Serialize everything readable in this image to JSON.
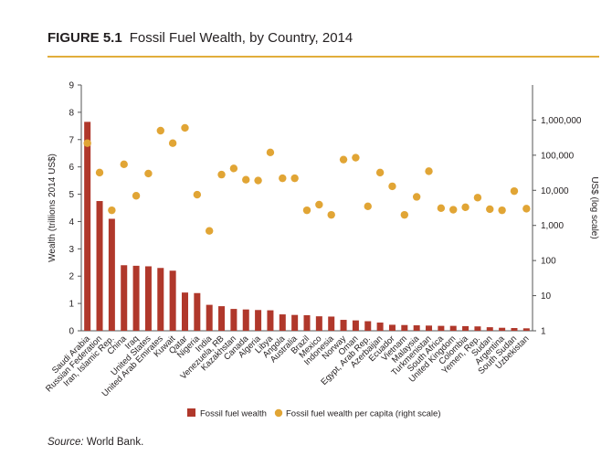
{
  "figure": {
    "label": "FIGURE 5.1",
    "title": "Fossil Fuel Wealth, by Country, 2014"
  },
  "source": {
    "label": "Source:",
    "text": " World Bank."
  },
  "colors": {
    "bar": "#b0382b",
    "dot": "#e1a535",
    "rule": "#e1ad3c",
    "axis": "#555555",
    "text": "#231f20"
  },
  "chart_data": {
    "type": "bar",
    "ylabel": "Wealth (trillions 2014 US$)",
    "ylabel_right": "US$ (log scale)",
    "ylim": [
      0,
      9
    ],
    "yticks": [
      "0",
      "1",
      "2",
      "3",
      "4",
      "5",
      "6",
      "7",
      "8",
      "9"
    ],
    "ylim_right": [
      1,
      10000000
    ],
    "yticks_right": [
      "1",
      "10",
      "100",
      "1,000",
      "10,000",
      "100,000",
      "1,000,000"
    ],
    "yticks_right_values": [
      1,
      10,
      100,
      1000,
      10000,
      100000,
      1000000
    ],
    "grid": false,
    "legend_position": "bottom",
    "categories": [
      "Saudi Arabia",
      "Russian Federation",
      "Iran, Islamic Rep.",
      "China",
      "Iraq",
      "United States",
      "United Arab Emirates",
      "Kuwait",
      "Qatar",
      "Nigeria",
      "India",
      "Venezuela, RB",
      "Kazakhstan",
      "Canada",
      "Algeria",
      "Libya",
      "Angola",
      "Australia",
      "Brazil",
      "Mexico",
      "Indonesia",
      "Norway",
      "Oman",
      "Egypt, Arab Rep.",
      "Azerbaijan",
      "Ecuador",
      "Vietnam",
      "Malaysia",
      "Turkmenistan",
      "South Africa",
      "United Kingdom",
      "Colombia",
      "Yemen, Rep.",
      "Sudan",
      "Argentina",
      "South Sudan",
      "Uzbekistan"
    ],
    "series": [
      {
        "name": "Fossil fuel wealth",
        "kind": "bar",
        "axis": "left",
        "values": [
          7.65,
          4.75,
          4.1,
          2.4,
          2.38,
          2.36,
          2.3,
          2.2,
          1.4,
          1.38,
          0.95,
          0.9,
          0.8,
          0.78,
          0.76,
          0.75,
          0.6,
          0.58,
          0.57,
          0.53,
          0.52,
          0.4,
          0.38,
          0.35,
          0.3,
          0.22,
          0.21,
          0.2,
          0.19,
          0.18,
          0.18,
          0.17,
          0.16,
          0.13,
          0.11,
          0.1,
          0.09
        ]
      },
      {
        "name": "Fossil fuel wealth per capita (right scale)",
        "kind": "dot",
        "axis": "right",
        "values": [
          220000,
          32000,
          2700,
          55000,
          7000,
          30000,
          500000,
          220000,
          600000,
          7500,
          700,
          28000,
          42000,
          20000,
          19000,
          120000,
          22000,
          22000,
          2700,
          3900,
          2000,
          75000,
          85000,
          3500,
          32000,
          13000,
          2000,
          6500,
          35000,
          3100,
          2800,
          3300,
          6200,
          2900,
          2700,
          9500,
          3000
        ]
      }
    ]
  }
}
